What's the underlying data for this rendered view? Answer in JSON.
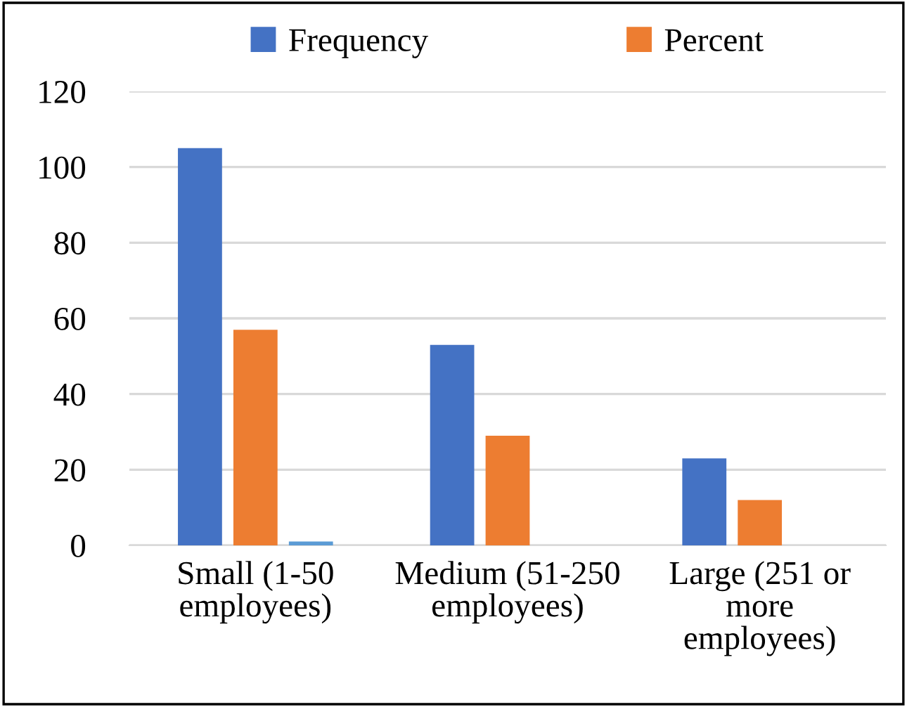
{
  "chart_data": {
    "type": "bar",
    "categories": [
      "Small (1-50 employees)",
      "Medium (51-250 employees)",
      "Large (251 or more employees)"
    ],
    "series": [
      {
        "name": "Frequency",
        "color": "#4472c4",
        "values": [
          105,
          53,
          23
        ]
      },
      {
        "name": "Percent",
        "color": "#ed7d31",
        "values": [
          57,
          29,
          12
        ]
      },
      {
        "color": "#5b9bd5",
        "values": [
          1,
          null,
          null
        ]
      }
    ],
    "ylim": [
      0,
      120
    ],
    "yticks": [
      0,
      20,
      40,
      60,
      80,
      100,
      120
    ],
    "grid": "y",
    "legend": "top"
  }
}
